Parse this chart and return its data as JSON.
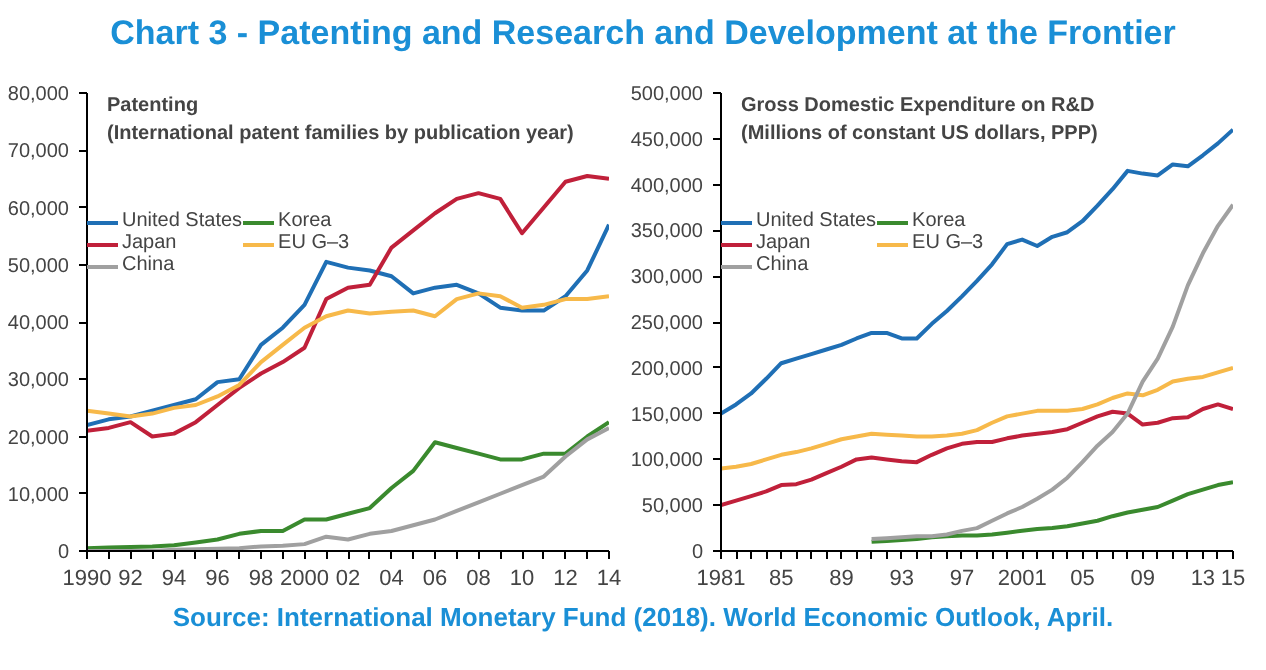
{
  "chart_data": [
    {
      "type": "line",
      "title": "Patenting",
      "subtitle": "(International patent families by publication year)",
      "annotations": [
        "Chart 3 - Patenting and Research and Development at the Frontier"
      ],
      "x": [
        1990,
        1991,
        1992,
        1993,
        1994,
        1995,
        1996,
        1997,
        1998,
        1999,
        2000,
        2001,
        2002,
        2003,
        2004,
        2005,
        2006,
        2007,
        2008,
        2009,
        2010,
        2011,
        2012,
        2013,
        2014
      ],
      "series": [
        {
          "name": "United States",
          "color": "#1f6fb5",
          "values": [
            22000,
            23000,
            23500,
            24500,
            25500,
            26500,
            29500,
            30000,
            36000,
            39000,
            43000,
            50500,
            49500,
            49000,
            48000,
            45000,
            46000,
            46500,
            45000,
            42500,
            42000,
            42000,
            44500,
            49000,
            57000
          ]
        },
        {
          "name": "Korea",
          "color": "#3a8a2e",
          "values": [
            500,
            600,
            700,
            800,
            1000,
            1500,
            2000,
            3000,
            3500,
            3500,
            5500,
            5500,
            6500,
            7500,
            11000,
            14000,
            19000,
            18000,
            17000,
            16000,
            16000,
            17000,
            17000,
            20000,
            22500
          ]
        },
        {
          "name": "Japan",
          "color": "#c0203a",
          "values": [
            21000,
            21500,
            22500,
            20000,
            20500,
            22500,
            25500,
            28500,
            31000,
            33000,
            35500,
            44000,
            46000,
            46500,
            53000,
            56000,
            59000,
            61500,
            62500,
            61500,
            55500,
            60000,
            64500,
            65500,
            65000
          ]
        },
        {
          "name": "EU G–3",
          "color": "#f7b94a",
          "values": [
            24500,
            24000,
            23500,
            24000,
            25000,
            25500,
            27000,
            29000,
            33000,
            36000,
            39000,
            41000,
            42000,
            41500,
            41800,
            42000,
            41000,
            44000,
            45000,
            44500,
            42500,
            43000,
            44000,
            44000,
            44500
          ]
        },
        {
          "name": "China",
          "color": "#a0a0a0",
          "values": [
            0,
            0,
            0,
            0,
            200,
            300,
            400,
            500,
            800,
            900,
            1200,
            2500,
            2000,
            3000,
            3500,
            4500,
            5500,
            7000,
            8500,
            10000,
            11500,
            13000,
            16500,
            19500,
            21500
          ]
        }
      ],
      "xlim": [
        1990,
        2014
      ],
      "xticks": [
        {
          "value": 1990,
          "label": "1990"
        },
        {
          "value": 1991,
          "label": null
        },
        {
          "value": 1992,
          "label": "92"
        },
        {
          "value": 1993,
          "label": null
        },
        {
          "value": 1994,
          "label": "94"
        },
        {
          "value": 1995,
          "label": null
        },
        {
          "value": 1996,
          "label": "96"
        },
        {
          "value": 1997,
          "label": null
        },
        {
          "value": 1998,
          "label": "98"
        },
        {
          "value": 1999,
          "label": null
        },
        {
          "value": 2000,
          "label": "2000"
        },
        {
          "value": 2001,
          "label": null
        },
        {
          "value": 2002,
          "label": "02"
        },
        {
          "value": 2003,
          "label": null
        },
        {
          "value": 2004,
          "label": "04"
        },
        {
          "value": 2005,
          "label": null
        },
        {
          "value": 2006,
          "label": "06"
        },
        {
          "value": 2007,
          "label": null
        },
        {
          "value": 2008,
          "label": "08"
        },
        {
          "value": 2009,
          "label": null
        },
        {
          "value": 2010,
          "label": "10"
        },
        {
          "value": 2011,
          "label": null
        },
        {
          "value": 2012,
          "label": "12"
        },
        {
          "value": 2013,
          "label": null
        },
        {
          "value": 2014,
          "label": "14"
        }
      ],
      "ylim": [
        0,
        80000
      ],
      "yticks": [
        {
          "value": 0,
          "label": "0"
        },
        {
          "value": 10000,
          "label": "10,000"
        },
        {
          "value": 20000,
          "label": "20,000"
        },
        {
          "value": 30000,
          "label": "30,000"
        },
        {
          "value": 40000,
          "label": "40,000"
        },
        {
          "value": 50000,
          "label": "50,000"
        },
        {
          "value": 60000,
          "label": "60,000"
        },
        {
          "value": 70000,
          "label": "70,000"
        },
        {
          "value": 80000,
          "label": "80,000"
        }
      ],
      "grid": false,
      "legend": "top left"
    },
    {
      "type": "line",
      "title": "Gross Domestic Expenditure on R&D",
      "subtitle": "(Millions of constant US dollars, PPP)",
      "annotations": [
        "Source: International Monetary Fund (2018). World Economic Outlook, April."
      ],
      "x": [
        1981,
        1982,
        1983,
        1984,
        1985,
        1986,
        1987,
        1988,
        1989,
        1990,
        1991,
        1992,
        1993,
        1994,
        1995,
        1996,
        1997,
        1998,
        1999,
        2000,
        2001,
        2002,
        2003,
        2004,
        2005,
        2006,
        2007,
        2008,
        2009,
        2010,
        2011,
        2012,
        2013,
        2014,
        2015
      ],
      "series": [
        {
          "name": "United States",
          "color": "#1f6fb5",
          "values": [
            150000,
            160000,
            172000,
            188000,
            205000,
            210000,
            215000,
            220000,
            225000,
            232000,
            238000,
            238000,
            232000,
            232000,
            248000,
            262000,
            278000,
            295000,
            313000,
            335000,
            340000,
            333000,
            343000,
            348000,
            360000,
            377000,
            395000,
            415000,
            412000,
            410000,
            422000,
            420000,
            432000,
            445000,
            460000
          ]
        },
        {
          "name": "Korea",
          "color": "#3a8a2e",
          "values": [
            null,
            null,
            null,
            null,
            null,
            null,
            null,
            null,
            null,
            null,
            10000,
            11000,
            12000,
            13000,
            15000,
            16000,
            17000,
            17000,
            18000,
            20000,
            22000,
            24000,
            25000,
            27000,
            30000,
            33000,
            38000,
            42000,
            45000,
            48000,
            55000,
            62000,
            67000,
            72000,
            75000
          ]
        },
        {
          "name": "Japan",
          "color": "#c0203a",
          "values": [
            50000,
            55000,
            60000,
            65000,
            72000,
            73000,
            78000,
            85000,
            92000,
            100000,
            102000,
            100000,
            98000,
            97000,
            105000,
            112000,
            117000,
            119000,
            119000,
            123000,
            126000,
            128000,
            130000,
            133000,
            140000,
            147000,
            152000,
            150000,
            138000,
            140000,
            145000,
            146000,
            155000,
            160000,
            155000
          ]
        },
        {
          "name": "EU G–3",
          "color": "#f7b94a",
          "values": [
            90000,
            92000,
            95000,
            100000,
            105000,
            108000,
            112000,
            117000,
            122000,
            125000,
            128000,
            127000,
            126000,
            125000,
            125000,
            126000,
            128000,
            132000,
            140000,
            147000,
            150000,
            153000,
            153000,
            153000,
            155000,
            160000,
            167000,
            172000,
            170000,
            176000,
            185000,
            188000,
            190000,
            195000,
            200000
          ]
        },
        {
          "name": "China",
          "color": "#a0a0a0",
          "values": [
            null,
            null,
            null,
            null,
            null,
            null,
            null,
            null,
            null,
            null,
            13000,
            14000,
            15000,
            16000,
            16000,
            18000,
            22000,
            25000,
            33000,
            41000,
            48000,
            57000,
            67000,
            80000,
            97000,
            115000,
            130000,
            150000,
            185000,
            210000,
            245000,
            290000,
            325000,
            355000,
            378000
          ]
        }
      ],
      "xlim": [
        1981,
        2015
      ],
      "xticks": [
        {
          "value": 1981,
          "label": "1981"
        },
        {
          "value": 1982,
          "label": null
        },
        {
          "value": 1983,
          "label": null
        },
        {
          "value": 1984,
          "label": null
        },
        {
          "value": 1985,
          "label": "85"
        },
        {
          "value": 1986,
          "label": null
        },
        {
          "value": 1987,
          "label": null
        },
        {
          "value": 1988,
          "label": null
        },
        {
          "value": 1989,
          "label": "89"
        },
        {
          "value": 1990,
          "label": null
        },
        {
          "value": 1991,
          "label": null
        },
        {
          "value": 1992,
          "label": null
        },
        {
          "value": 1993,
          "label": "93"
        },
        {
          "value": 1994,
          "label": null
        },
        {
          "value": 1995,
          "label": null
        },
        {
          "value": 1996,
          "label": null
        },
        {
          "value": 1997,
          "label": "97"
        },
        {
          "value": 1998,
          "label": null
        },
        {
          "value": 1999,
          "label": null
        },
        {
          "value": 2000,
          "label": null
        },
        {
          "value": 2001,
          "label": "2001"
        },
        {
          "value": 2002,
          "label": null
        },
        {
          "value": 2003,
          "label": null
        },
        {
          "value": 2004,
          "label": null
        },
        {
          "value": 2005,
          "label": "05"
        },
        {
          "value": 2006,
          "label": null
        },
        {
          "value": 2007,
          "label": null
        },
        {
          "value": 2008,
          "label": null
        },
        {
          "value": 2009,
          "label": "09"
        },
        {
          "value": 2010,
          "label": null
        },
        {
          "value": 2011,
          "label": null
        },
        {
          "value": 2012,
          "label": null
        },
        {
          "value": 2013,
          "label": "13"
        },
        {
          "value": 2014,
          "label": null
        },
        {
          "value": 2015,
          "label": "15"
        }
      ],
      "ylim": [
        0,
        500000
      ],
      "yticks": [
        {
          "value": 0,
          "label": "0"
        },
        {
          "value": 50000,
          "label": "50,000"
        },
        {
          "value": 100000,
          "label": "100,000"
        },
        {
          "value": 150000,
          "label": "150,000"
        },
        {
          "value": 200000,
          "label": "200,000"
        },
        {
          "value": 250000,
          "label": "250,000"
        },
        {
          "value": 300000,
          "label": "300,000"
        },
        {
          "value": 350000,
          "label": "350,000"
        },
        {
          "value": 400000,
          "label": "400,000"
        },
        {
          "value": 450000,
          "label": "450,000"
        },
        {
          "value": 500000,
          "label": "500,000"
        }
      ],
      "grid": false,
      "legend": "top left"
    }
  ]
}
